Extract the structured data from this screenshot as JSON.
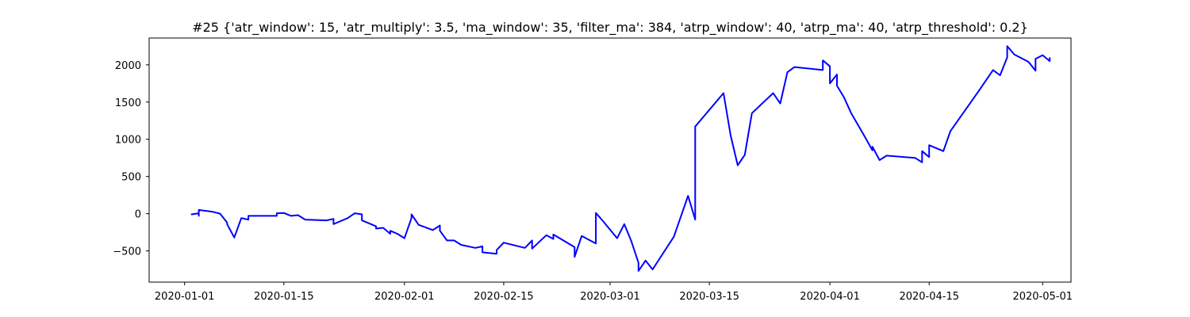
{
  "chart_data": {
    "type": "line",
    "title": "#25 {'atr_window': 15, 'atr_multiply': 3.5, 'ma_window': 35, 'filter_ma': 384, 'atrp_window': 40, 'atrp_ma': 40, 'atrp_threshold': 0.2}",
    "xlabel": "",
    "ylabel": "",
    "xlim": [
      "2019-12-27",
      "2020-05-05"
    ],
    "ylim": [
      -920,
      2360
    ],
    "grid": false,
    "x_ticks": [
      "2020-01-01",
      "2020-01-15",
      "2020-02-01",
      "2020-02-15",
      "2020-03-01",
      "2020-03-15",
      "2020-04-01",
      "2020-04-15",
      "2020-05-01"
    ],
    "y_ticks": [
      -500,
      0,
      500,
      1000,
      1500,
      2000
    ],
    "series": [
      {
        "color": "#0000ff",
        "points": [
          [
            "2020-01-02",
            0
          ],
          [
            "2020-01-02",
            -10
          ],
          [
            "2020-01-03",
            5
          ],
          [
            "2020-01-03",
            -30
          ],
          [
            "2020-01-03",
            50
          ],
          [
            "2020-01-05",
            25
          ],
          [
            "2020-01-06",
            0
          ],
          [
            "2020-01-07",
            -120
          ],
          [
            "2020-01-07",
            -140
          ],
          [
            "2020-01-08",
            -320
          ],
          [
            "2020-01-09",
            -60
          ],
          [
            "2020-01-10",
            -80
          ],
          [
            "2020-01-10",
            -30
          ],
          [
            "2020-01-14",
            -30
          ],
          [
            "2020-01-14",
            5
          ],
          [
            "2020-01-15",
            10
          ],
          [
            "2020-01-16",
            -30
          ],
          [
            "2020-01-17",
            -20
          ],
          [
            "2020-01-18",
            -80
          ],
          [
            "2020-01-21",
            -90
          ],
          [
            "2020-01-22",
            -70
          ],
          [
            "2020-01-22",
            -140
          ],
          [
            "2020-01-23",
            -100
          ],
          [
            "2020-01-24",
            -60
          ],
          [
            "2020-01-25",
            5
          ],
          [
            "2020-01-26",
            -10
          ],
          [
            "2020-01-26",
            -90
          ],
          [
            "2020-01-28",
            -170
          ],
          [
            "2020-01-28",
            -200
          ],
          [
            "2020-01-29",
            -190
          ],
          [
            "2020-01-30",
            -270
          ],
          [
            "2020-01-30",
            -230
          ],
          [
            "2020-01-31",
            -270
          ],
          [
            "2020-02-01",
            -330
          ],
          [
            "2020-02-02",
            -60
          ],
          [
            "2020-02-02",
            -10
          ],
          [
            "2020-02-03",
            -150
          ],
          [
            "2020-02-05",
            -220
          ],
          [
            "2020-02-06",
            -160
          ],
          [
            "2020-02-06",
            -230
          ],
          [
            "2020-02-07",
            -360
          ],
          [
            "2020-02-08",
            -360
          ],
          [
            "2020-02-09",
            -420
          ],
          [
            "2020-02-11",
            -460
          ],
          [
            "2020-02-12",
            -440
          ],
          [
            "2020-02-12",
            -520
          ],
          [
            "2020-02-14",
            -540
          ],
          [
            "2020-02-14",
            -490
          ],
          [
            "2020-02-15",
            -390
          ],
          [
            "2020-02-18",
            -460
          ],
          [
            "2020-02-19",
            -360
          ],
          [
            "2020-02-19",
            -470
          ],
          [
            "2020-02-21",
            -290
          ],
          [
            "2020-02-22",
            -340
          ],
          [
            "2020-02-22",
            -280
          ],
          [
            "2020-02-25",
            -450
          ],
          [
            "2020-02-25",
            -580
          ],
          [
            "2020-02-26",
            -300
          ],
          [
            "2020-02-28",
            -400
          ],
          [
            "2020-02-28",
            10
          ],
          [
            "2020-02-29",
            -100
          ],
          [
            "2020-03-02",
            -330
          ],
          [
            "2020-03-03",
            -140
          ],
          [
            "2020-03-04",
            -370
          ],
          [
            "2020-03-05",
            -660
          ],
          [
            "2020-03-05",
            -770
          ],
          [
            "2020-03-06",
            -630
          ],
          [
            "2020-03-07",
            -750
          ],
          [
            "2020-03-10",
            -310
          ],
          [
            "2020-03-12",
            240
          ],
          [
            "2020-03-13",
            -80
          ],
          [
            "2020-03-13",
            1170
          ],
          [
            "2020-03-17",
            1620
          ],
          [
            "2020-03-18",
            1050
          ],
          [
            "2020-03-19",
            650
          ],
          [
            "2020-03-20",
            790
          ],
          [
            "2020-03-21",
            1350
          ],
          [
            "2020-03-24",
            1620
          ],
          [
            "2020-03-25",
            1480
          ],
          [
            "2020-03-26",
            1900
          ],
          [
            "2020-03-27",
            1970
          ],
          [
            "2020-03-31",
            1930
          ],
          [
            "2020-03-31",
            2060
          ],
          [
            "2020-04-01",
            1980
          ],
          [
            "2020-04-01",
            1750
          ],
          [
            "2020-04-02",
            1870
          ],
          [
            "2020-04-02",
            1720
          ],
          [
            "2020-04-03",
            1560
          ],
          [
            "2020-04-04",
            1350
          ],
          [
            "2020-04-06",
            1020
          ],
          [
            "2020-04-07",
            850
          ],
          [
            "2020-04-07",
            900
          ],
          [
            "2020-04-08",
            720
          ],
          [
            "2020-04-09",
            780
          ],
          [
            "2020-04-13",
            750
          ],
          [
            "2020-04-14",
            690
          ],
          [
            "2020-04-14",
            840
          ],
          [
            "2020-04-15",
            760
          ],
          [
            "2020-04-15",
            920
          ],
          [
            "2020-04-17",
            840
          ],
          [
            "2020-04-18",
            1110
          ],
          [
            "2020-04-22",
            1650
          ],
          [
            "2020-04-24",
            1930
          ],
          [
            "2020-04-25",
            1860
          ],
          [
            "2020-04-26",
            2100
          ],
          [
            "2020-04-26",
            2250
          ],
          [
            "2020-04-27",
            2140
          ],
          [
            "2020-04-29",
            2040
          ],
          [
            "2020-04-30",
            1920
          ],
          [
            "2020-04-30",
            2080
          ],
          [
            "2020-05-01",
            2130
          ],
          [
            "2020-05-02",
            2050
          ],
          [
            "2020-05-02",
            2100
          ]
        ]
      }
    ]
  }
}
